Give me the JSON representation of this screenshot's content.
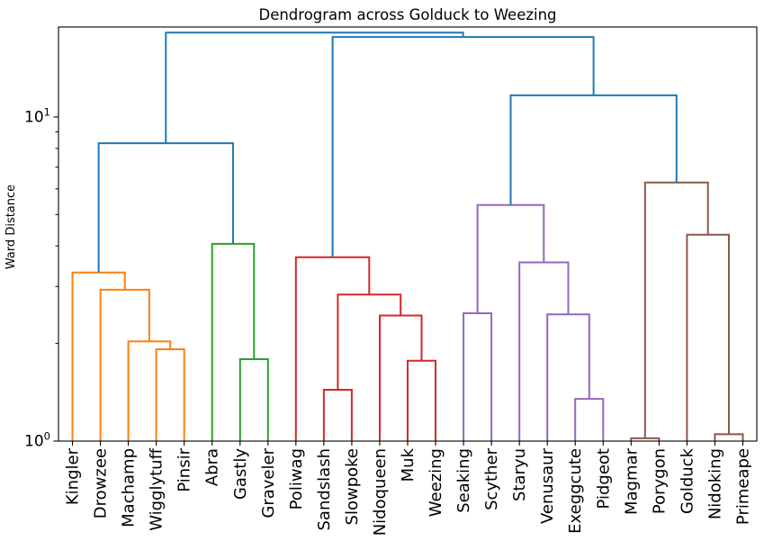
{
  "chart_data": {
    "type": "dendrogram",
    "title": "Dendrogram across Golduck to Weezing",
    "ylabel": "Ward Distance",
    "yscale": "log",
    "ylim": [
      1,
      18.95
    ],
    "grid": false,
    "legend": "none",
    "leaves": [
      "Kingler",
      "Drowzee",
      "Machamp",
      "Wigglytuff",
      "Pinsir",
      "Abra",
      "Gastly",
      "Graveler",
      "Poliwag",
      "Sandslash",
      "Slowpoke",
      "Nidoqueen",
      "Muk",
      "Weezing",
      "Seaking",
      "Scyther",
      "Staryu",
      "Venusaur",
      "Exeggcute",
      "Pidgeot",
      "Magmar",
      "Porygon",
      "Golduck",
      "Nidoking",
      "Primeape"
    ],
    "palette": {
      "blue": "#1f77b4",
      "orange": "#ff7f0e",
      "green": "#2ca02c",
      "red": "#d62728",
      "purple": "#9467bd",
      "brown": "#8c564b"
    },
    "yticks_major": [
      {
        "value": 1,
        "base": "10",
        "exp": "0"
      },
      {
        "value": 10,
        "base": "10",
        "exp": "1"
      }
    ],
    "yticks_minor": [
      2,
      3,
      4,
      5,
      6,
      7,
      8,
      9
    ],
    "tree": {
      "h": 18.2,
      "c": "blue",
      "children": [
        {
          "h": 8.3,
          "c": "blue",
          "children": [
            {
              "h": 3.31,
              "c": "orange",
              "children": [
                {
                  "leaf": "Kingler"
                },
                {
                  "h": 2.93,
                  "c": "orange",
                  "children": [
                    {
                      "leaf": "Drowzee"
                    },
                    {
                      "h": 2.03,
                      "c": "orange",
                      "children": [
                        {
                          "leaf": "Machamp"
                        },
                        {
                          "h": 1.92,
                          "c": "orange",
                          "children": [
                            {
                              "leaf": "Wigglytuff"
                            },
                            {
                              "leaf": "Pinsir"
                            }
                          ]
                        }
                      ]
                    }
                  ]
                }
              ]
            },
            {
              "h": 4.06,
              "c": "green",
              "children": [
                {
                  "leaf": "Abra"
                },
                {
                  "h": 1.79,
                  "c": "green",
                  "children": [
                    {
                      "leaf": "Gastly"
                    },
                    {
                      "leaf": "Graveler"
                    }
                  ]
                }
              ]
            }
          ]
        },
        {
          "h": 17.65,
          "c": "blue",
          "children": [
            {
              "h": 3.69,
              "c": "red",
              "children": [
                {
                  "leaf": "Poliwag"
                },
                {
                  "h": 2.83,
                  "c": "red",
                  "children": [
                    {
                      "h": 1.44,
                      "c": "red",
                      "children": [
                        {
                          "leaf": "Sandslash"
                        },
                        {
                          "leaf": "Slowpoke"
                        }
                      ]
                    },
                    {
                      "h": 2.44,
                      "c": "red",
                      "children": [
                        {
                          "leaf": "Nidoqueen"
                        },
                        {
                          "h": 1.77,
                          "c": "red",
                          "children": [
                            {
                              "leaf": "Muk"
                            },
                            {
                              "leaf": "Weezing"
                            }
                          ]
                        }
                      ]
                    }
                  ]
                }
              ]
            },
            {
              "h": 11.66,
              "c": "blue",
              "children": [
                {
                  "h": 5.35,
                  "c": "purple",
                  "children": [
                    {
                      "h": 2.48,
                      "c": "purple",
                      "children": [
                        {
                          "leaf": "Seaking"
                        },
                        {
                          "leaf": "Scyther"
                        }
                      ]
                    },
                    {
                      "h": 3.56,
                      "c": "purple",
                      "children": [
                        {
                          "leaf": "Staryu"
                        },
                        {
                          "h": 2.46,
                          "c": "purple",
                          "children": [
                            {
                              "leaf": "Venusaur"
                            },
                            {
                              "h": 1.35,
                              "c": "purple",
                              "children": [
                                {
                                  "leaf": "Exeggcute"
                                },
                                {
                                  "leaf": "Pidgeot"
                                }
                              ]
                            }
                          ]
                        }
                      ]
                    }
                  ]
                },
                {
                  "h": 6.28,
                  "c": "brown",
                  "children": [
                    {
                      "h": 1.02,
                      "c": "brown",
                      "children": [
                        {
                          "leaf": "Magmar"
                        },
                        {
                          "leaf": "Porygon"
                        }
                      ]
                    },
                    {
                      "h": 4.33,
                      "c": "brown",
                      "children": [
                        {
                          "leaf": "Golduck"
                        },
                        {
                          "h": 1.05,
                          "c": "brown",
                          "children": [
                            {
                              "leaf": "Nidoking"
                            },
                            {
                              "leaf": "Primeape"
                            }
                          ]
                        }
                      ]
                    }
                  ]
                }
              ]
            }
          ]
        }
      ]
    }
  }
}
